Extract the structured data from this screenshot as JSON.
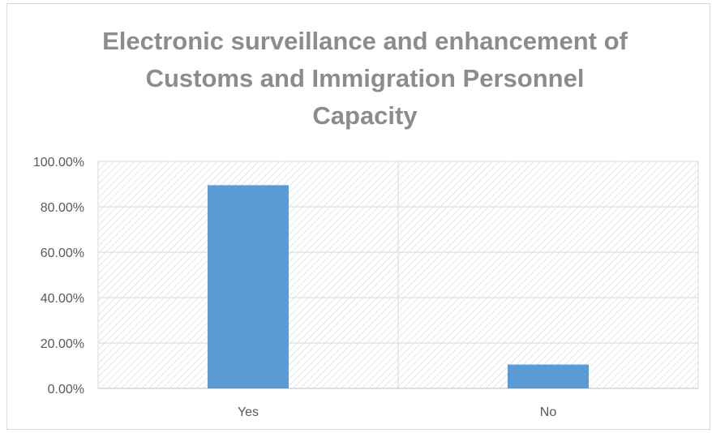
{
  "chart_data": {
    "type": "bar",
    "title_lines": [
      "Electronic surveillance and enhancement of",
      "Customs and Immigration Personnel",
      "Capacity"
    ],
    "categories": [
      "Yes",
      "No"
    ],
    "values": [
      89.5,
      10.5
    ],
    "ylim": [
      0,
      100
    ],
    "yticks": [
      "0.00%",
      "20.00%",
      "40.00%",
      "60.00%",
      "80.00%",
      "100.00%"
    ],
    "grid": true,
    "bar_color": "#5b9bd5",
    "plot_background": "hatched"
  }
}
